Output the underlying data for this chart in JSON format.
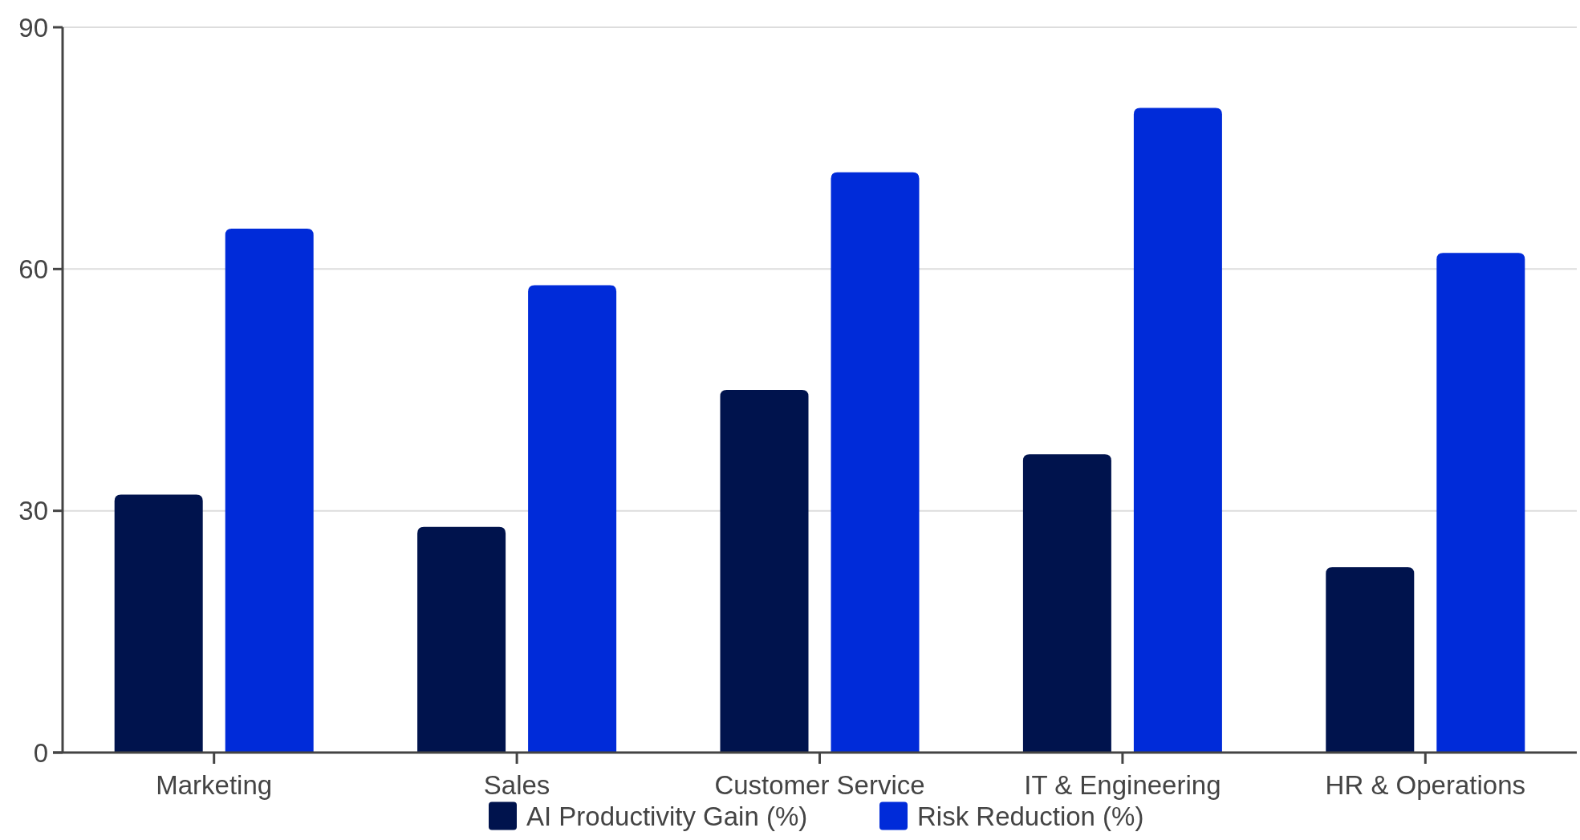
{
  "chart_data": {
    "type": "bar",
    "categories": [
      "Marketing",
      "Sales",
      "Customer Service",
      "IT & Engineering",
      "HR & Operations"
    ],
    "series": [
      {
        "name": "AI Productivity Gain (%)",
        "color": "#00134d",
        "values": [
          32,
          28,
          45,
          37,
          23
        ]
      },
      {
        "name": "Risk Reduction (%)",
        "color": "#002bd9",
        "values": [
          65,
          58,
          72,
          80,
          62
        ]
      }
    ],
    "ylim": [
      0,
      90
    ],
    "yticks": [
      0,
      30,
      60,
      90
    ],
    "grid": "y",
    "legend": "bottom"
  }
}
